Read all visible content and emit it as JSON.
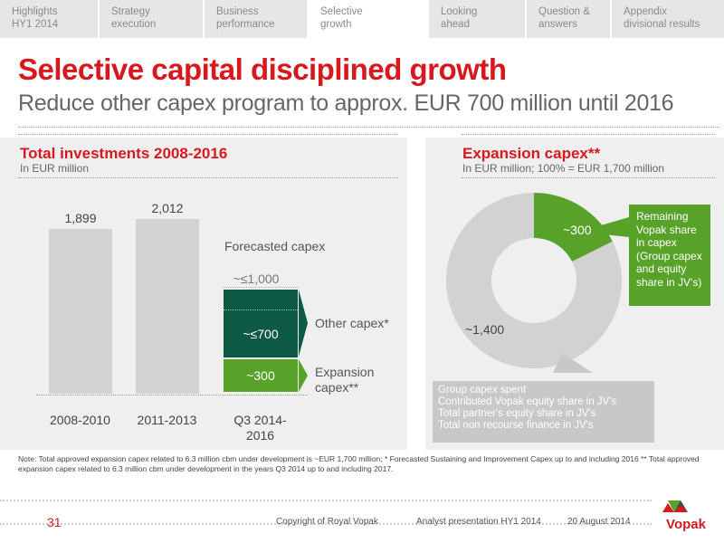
{
  "nav": {
    "items": [
      {
        "label": "Highlights\nHY1 2014",
        "active": false
      },
      {
        "label": "Strategy\nexecution",
        "active": false
      },
      {
        "label": "Business\nperformance",
        "active": false
      },
      {
        "label": "Selective\ngrowth",
        "active": true
      },
      {
        "label": "Looking\nahead",
        "active": false
      },
      {
        "label": "Question &\nanswers",
        "active": false
      },
      {
        "label": "Appendix\ndivisional results",
        "active": false
      }
    ]
  },
  "title": "Selective capital disciplined growth",
  "subtitle": "Reduce other capex program to approx. EUR 700 million until 2016",
  "left_panel": {
    "title": "Total investments 2008-2016",
    "subtitle": "In EUR million",
    "forecast_label": "Forecasted capex",
    "approx_total": "~≤1,000",
    "legend_other": "Other capex*",
    "legend_expansion": "Expansion\ncapex**"
  },
  "right_panel": {
    "title": "Expansion capex**",
    "subtitle": "In EUR million; 100% = EUR 1,700 million",
    "callout_green": "Remaining Vopak share in capex (Group capex and equity share in JV's)",
    "callout_gray": {
      "heading": "Group capex spent",
      "lines": [
        "Contributed Vopak equity share in JV's",
        "Total partner's equity share in JV's",
        "Total non recourse finance in JV's"
      ]
    }
  },
  "chart_data": [
    {
      "type": "bar",
      "title": "Total investments 2008-2016",
      "subtitle": "In EUR million",
      "categories": [
        "2008-2010",
        "2011-2013",
        "Q3 2014-\n2016"
      ],
      "series": [
        {
          "name": "",
          "values": [
            1899,
            2012,
            null
          ],
          "labels": [
            "1,899",
            "2,012",
            ""
          ]
        },
        {
          "name": "Expansion capex**",
          "values": [
            null,
            null,
            300
          ],
          "labels": [
            "",
            "",
            "~300"
          ]
        },
        {
          "name": "Other capex*",
          "values": [
            null,
            null,
            700
          ],
          "labels": [
            "",
            "",
            "~≤700"
          ]
        }
      ],
      "ylim": [
        0,
        2200
      ]
    },
    {
      "type": "pie",
      "title": "Expansion capex**",
      "subtitle": "In EUR million; 100% = EUR 1,700 million",
      "slices": [
        {
          "label": "~300",
          "value": 300,
          "color": "#58a22a"
        },
        {
          "label": "~1,400",
          "value": 1400,
          "color": "#d2d2d2"
        }
      ],
      "total": 1700
    }
  ],
  "colors": {
    "accent_red": "#d7191e",
    "green": "#58a22a",
    "dark_green": "#0d5b45",
    "bar_gray": "#d2d2d2"
  },
  "note": "Note: Total approved expansion capex related to 6.3 million cbm under development is ~EUR 1,700 million; * Forecasted Sustaining and Improvement Capex up to and including 2016 ** Total approved expansion capex related to 6.3 million cbm under development in the years Q3 2014 up to and including 2017.",
  "footer": {
    "page": "31",
    "copyright": "Copyright of Royal Vopak",
    "presentation": "Analyst presentation HY1 2014",
    "date": "20 August 2014",
    "logo_text": "Vopak"
  }
}
